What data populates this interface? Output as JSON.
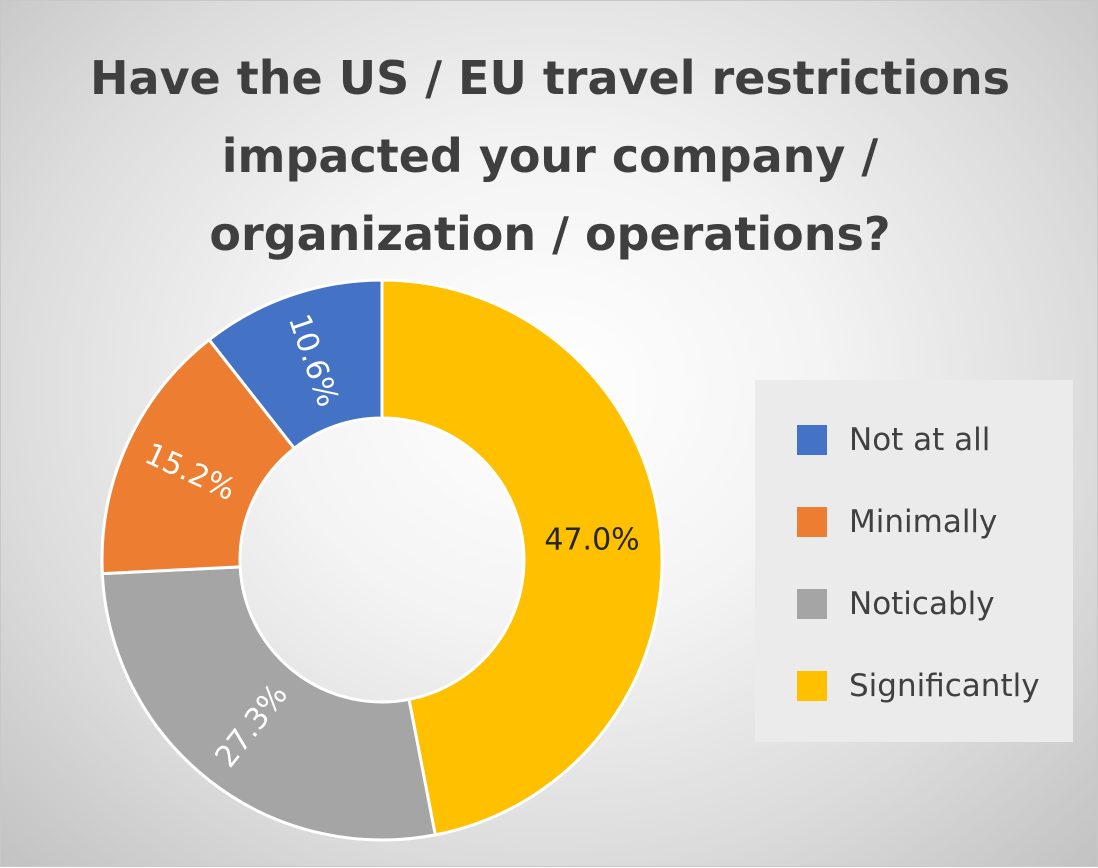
{
  "chart_data": {
    "type": "pie",
    "variant": "donut",
    "title": "Have the US / EU travel restrictions impacted your company / organization / operations?",
    "title_lines": [
      "Have the US / EU travel restrictions",
      "impacted your company /",
      "organization / operations?"
    ],
    "categories": [
      "Not at all",
      "Minimally",
      "Noticably",
      "Significantly"
    ],
    "values": [
      10.6,
      15.2,
      27.3,
      47.0
    ],
    "value_labels": [
      "10.6%",
      "15.2%",
      "27.3%",
      "47.0%"
    ],
    "colors": [
      "#4472c4",
      "#ed7d31",
      "#a5a5a5",
      "#ffc000"
    ],
    "label_colors": [
      "#ffffff",
      "#ffffff",
      "#ffffff",
      "#262626"
    ],
    "legend_position": "right",
    "start_angle_deg": 0,
    "direction": "clockwise"
  }
}
